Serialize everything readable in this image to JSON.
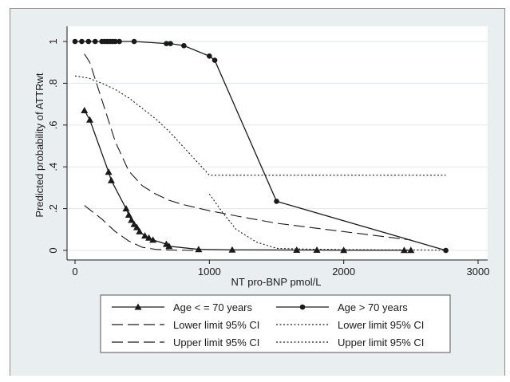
{
  "chart_data": {
    "type": "line",
    "xlabel": "NT pro-BNP pmol/L",
    "ylabel": "Predicted probability of ATTRwt",
    "xlim": [
      0,
      3000
    ],
    "ylim": [
      0,
      1
    ],
    "x_ticks": [
      "0",
      "1000",
      "2000",
      "3000"
    ],
    "x_tick_values": [
      0,
      1000,
      2000,
      3000
    ],
    "y_ticks": [
      "0",
      ".2",
      ".4",
      ".6",
      ".8",
      "1"
    ],
    "y_tick_values": [
      0,
      0.2,
      0.4,
      0.6,
      0.8,
      1
    ],
    "grid": "horizontal",
    "legend_position": "bottom",
    "colors": {
      "plot_bg": "#ffffff",
      "outer_bg": "#e9eef1",
      "grid": "#dfe7ec",
      "series": "#1a1a1a"
    },
    "series": [
      {
        "name": "Age < = 70 years",
        "marker": "triangle",
        "style": "solid",
        "x": [
          70,
          110,
          250,
          270,
          380,
          400,
          420,
          440,
          460,
          480,
          520,
          550,
          580,
          680,
          700,
          920,
          1170,
          1650,
          1800,
          2000,
          2450,
          2500
        ],
        "y": [
          0.67,
          0.625,
          0.375,
          0.335,
          0.2,
          0.17,
          0.145,
          0.125,
          0.11,
          0.09,
          0.07,
          0.06,
          0.05,
          0.03,
          0.02,
          0.005,
          0.003,
          0.002,
          0.002,
          0.001,
          0.001,
          0.001
        ]
      },
      {
        "name": "Age > 70 years",
        "marker": "circle",
        "style": "solid",
        "x": [
          0,
          50,
          100,
          150,
          200,
          220,
          240,
          260,
          280,
          300,
          330,
          440,
          680,
          710,
          810,
          1000,
          1040,
          1500,
          2760
        ],
        "y": [
          1.0,
          1.0,
          1.0,
          1.0,
          1.0,
          1.0,
          1.0,
          1.0,
          1.0,
          1.0,
          1.0,
          1.0,
          0.99,
          0.99,
          0.98,
          0.93,
          0.91,
          0.235,
          0.0
        ]
      },
      {
        "name": "Lower limit 95% CI",
        "group": "Age < = 70 years",
        "style": "long-dash",
        "x": [
          70,
          200,
          300,
          400,
          500,
          600,
          700,
          800,
          900
        ],
        "y": [
          0.215,
          0.15,
          0.09,
          0.045,
          0.015,
          0.005,
          0.002,
          0.001,
          0.0
        ]
      },
      {
        "name": "Lower limit 95% CI",
        "group": "Age > 70 years",
        "style": "short-dash",
        "x": [
          1000,
          1100,
          1200,
          1350,
          1500,
          1800,
          2200,
          2600,
          2760
        ],
        "y": [
          0.27,
          0.18,
          0.1,
          0.04,
          0.01,
          0.005,
          0.003,
          0.002,
          0.001
        ]
      },
      {
        "name": "Upper limit 95% CI",
        "group": "Age < = 70 years",
        "style": "long-dash",
        "x": [
          70,
          110,
          200,
          300,
          400,
          500,
          600,
          700,
          800,
          1000,
          1200,
          1500,
          2000,
          2500
        ],
        "y": [
          0.94,
          0.9,
          0.72,
          0.52,
          0.38,
          0.31,
          0.27,
          0.24,
          0.22,
          0.19,
          0.165,
          0.13,
          0.09,
          0.05
        ]
      },
      {
        "name": "Upper limit 95% CI",
        "group": "Age > 70 years",
        "style": "short-dash",
        "x": [
          0,
          100,
          200,
          300,
          400,
          500,
          600,
          700,
          800,
          900,
          1000,
          1200,
          1500,
          2000,
          2500,
          2760
        ],
        "y": [
          0.835,
          0.825,
          0.8,
          0.77,
          0.73,
          0.68,
          0.63,
          0.57,
          0.5,
          0.43,
          0.36,
          0.36,
          0.36,
          0.36,
          0.36,
          0.36
        ]
      }
    ]
  }
}
